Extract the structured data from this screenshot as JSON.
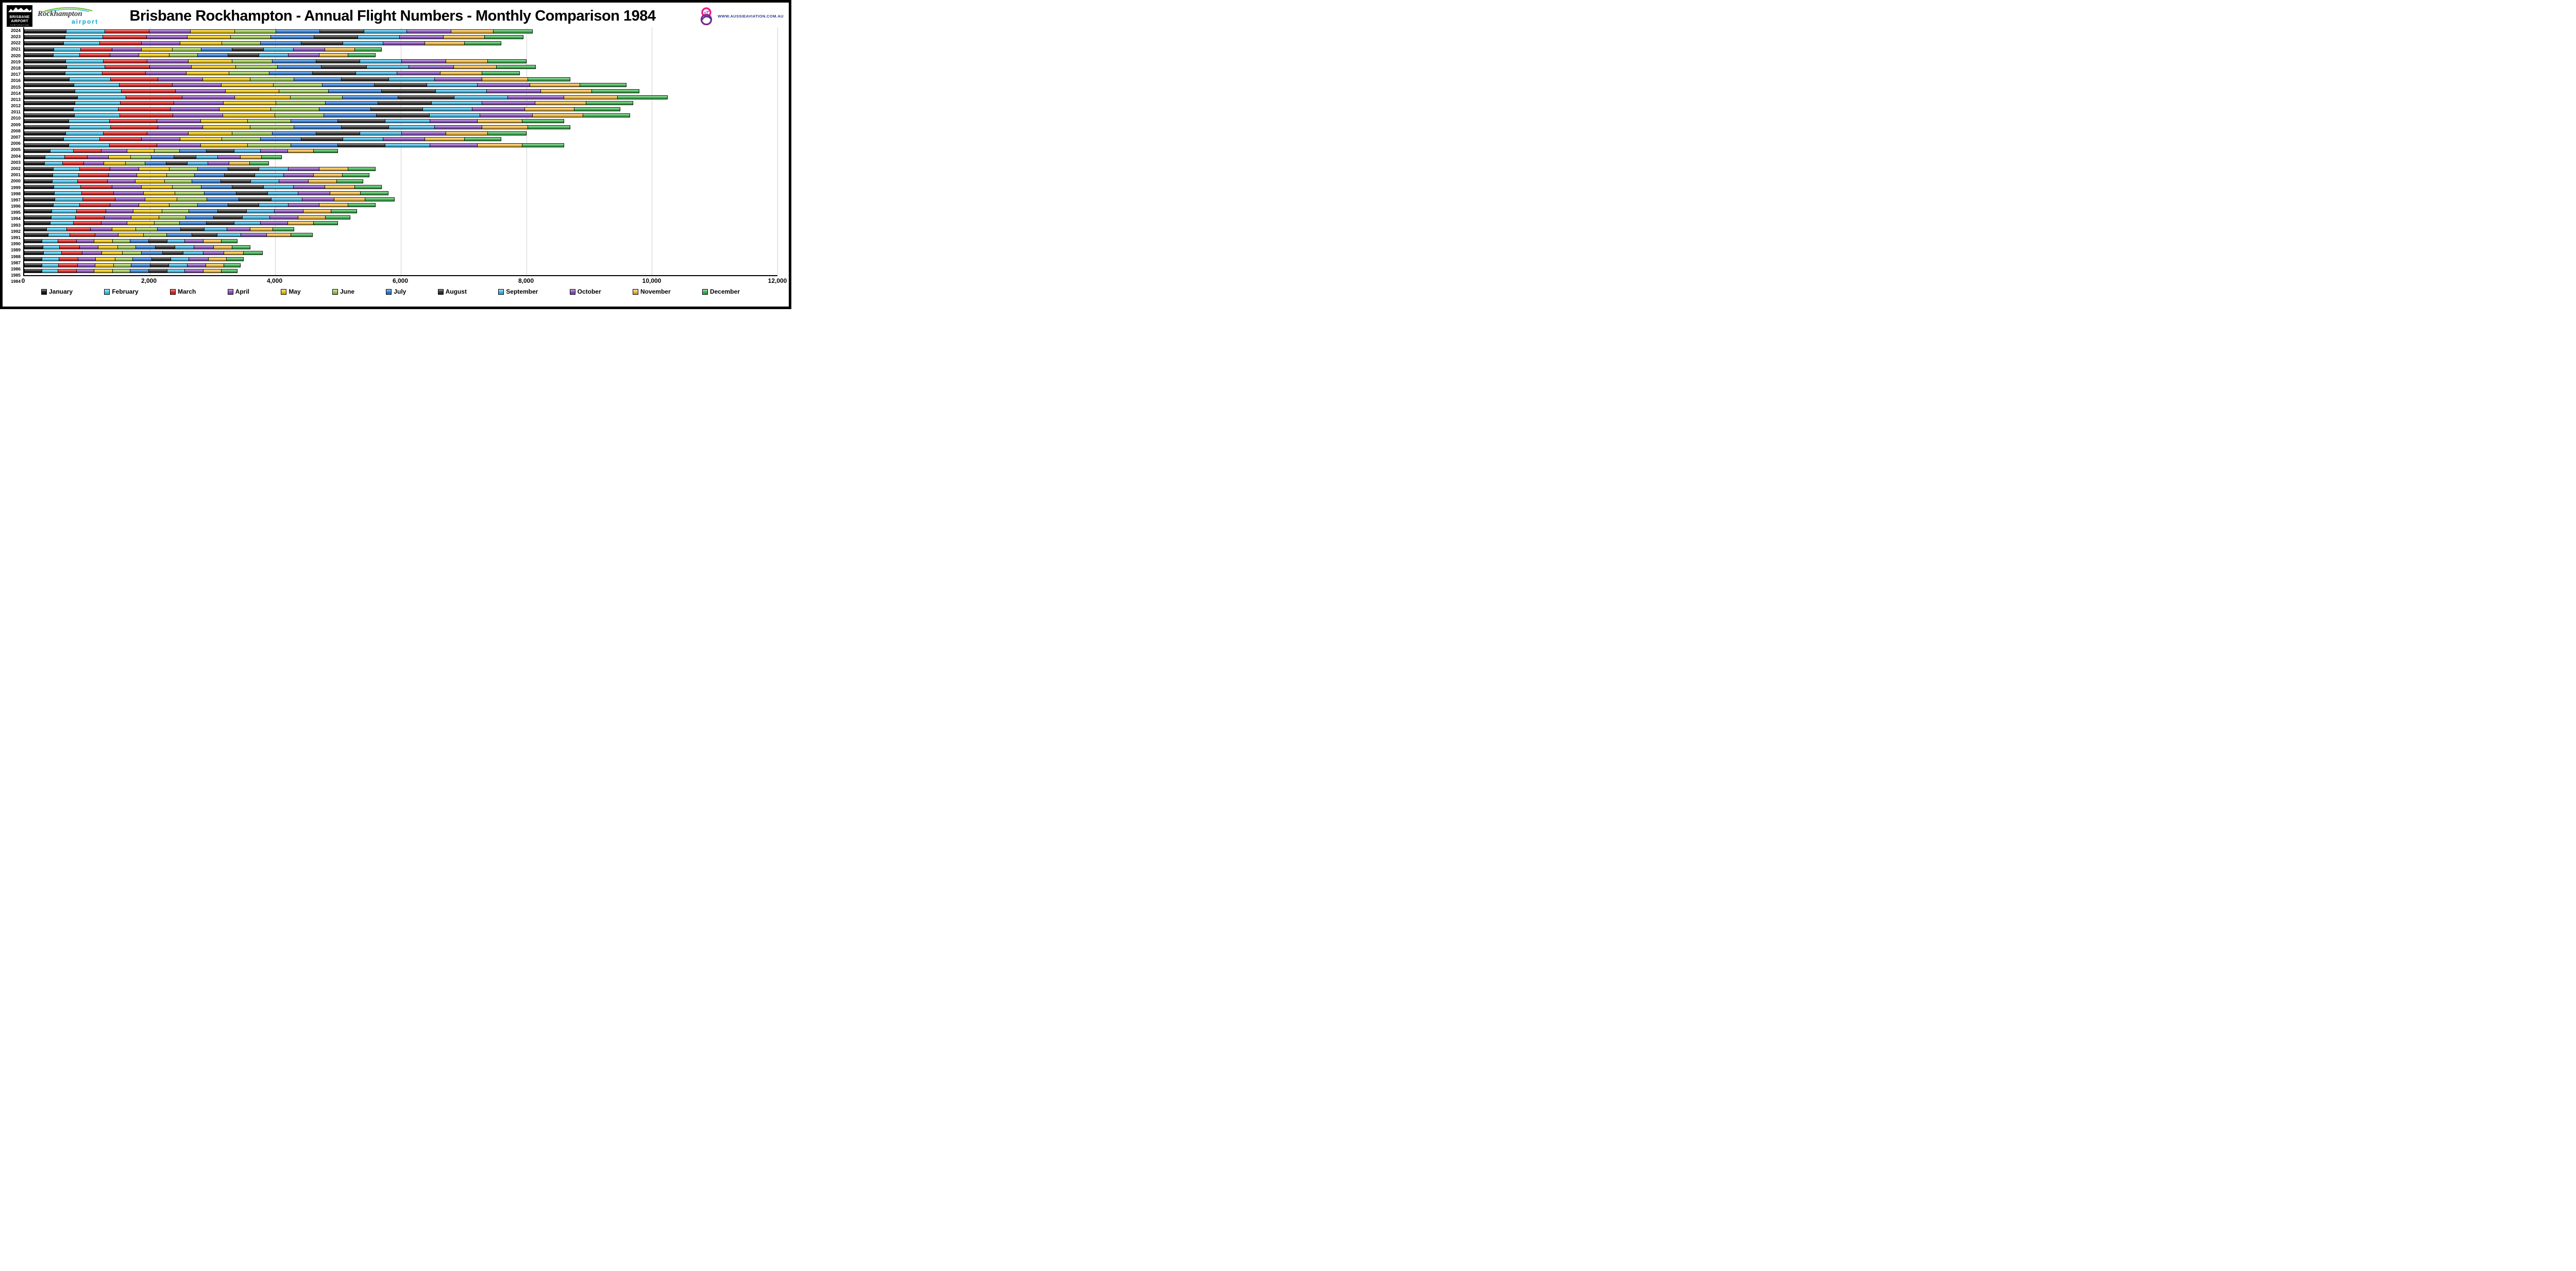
{
  "header": {
    "logo_brisbane": {
      "line1": "BRISBANE",
      "line2": "AIRPORT",
      "line3": "CORPORATION"
    },
    "logo_rockhampton": {
      "line1": "Rockhampton",
      "line2": "airport"
    },
    "logo_aussie": {
      "text": "WWW.AUSSIEAVIATION.COM.AU"
    }
  },
  "chart_data": {
    "type": "bar",
    "stacked": true,
    "orientation": "horizontal",
    "title": "Brisbane Rockhampton - Annual Flight Numbers - Monthly Comparison 1984",
    "xlabel": "",
    "ylabel": "Year",
    "xlim": [
      0,
      12000
    ],
    "xticks": [
      0,
      2000,
      4000,
      6000,
      8000,
      10000,
      12000
    ],
    "xtick_labels": [
      "0",
      "2,000",
      "4,000",
      "6,000",
      "8,000",
      "10,000",
      "12,000"
    ],
    "grid": "vertical",
    "legend_position": "bottom",
    "categories": [
      2024,
      2023,
      2022,
      2021,
      2020,
      2019,
      2018,
      2017,
      2016,
      2015,
      2014,
      2013,
      2012,
      2011,
      2010,
      2009,
      2008,
      2007,
      2006,
      2005,
      2004,
      2003,
      2002,
      2001,
      2000,
      1999,
      1998,
      1997,
      1996,
      1995,
      1994,
      1993,
      1992,
      1991,
      1990,
      1989,
      1988,
      1987,
      1986,
      1985,
      1984
    ],
    "series": [
      {
        "name": "January",
        "color": "#151515",
        "values": [
          675,
          660,
          635,
          475,
          465,
          665,
          680,
          660,
          725,
          800,
          815,
          855,
          810,
          790,
          805,
          715,
          725,
          665,
          635,
          715,
          415,
          340,
          325,
          465,
          460,
          450,
          475,
          485,
          490,
          465,
          440,
          435,
          415,
          360,
          385,
          285,
          300,
          315,
          290,
          290,
          285
        ]
      },
      {
        "name": "February",
        "color": "#45c8f1",
        "values": [
          610,
          595,
          570,
          430,
          420,
          600,
          610,
          590,
          650,
          720,
          735,
          770,
          725,
          715,
          725,
          645,
          650,
          600,
          570,
          645,
          375,
          310,
          290,
          420,
          410,
          405,
          430,
          435,
          445,
          420,
          400,
          390,
          375,
          320,
          345,
          255,
          270,
          285,
          265,
          260,
          255
        ]
      },
      {
        "name": "March",
        "color": "#e32020",
        "values": [
          710,
          695,
          665,
          500,
          490,
          700,
          715,
          690,
          760,
          840,
          860,
          895,
          850,
          830,
          845,
          755,
          760,
          700,
          665,
          755,
          440,
          360,
          340,
          490,
          480,
          475,
          500,
          510,
          515,
          490,
          465,
          455,
          440,
          375,
          400,
          300,
          315,
          330,
          305,
          300,
          300
        ]
      },
      {
        "name": "April",
        "color": "#8f4fbf",
        "values": [
          660,
          650,
          620,
          465,
          455,
          655,
          665,
          645,
          710,
          785,
          800,
          835,
          790,
          775,
          790,
          700,
          710,
          655,
          620,
          700,
          410,
          335,
          320,
          455,
          450,
          440,
          465,
          475,
          480,
          455,
          435,
          425,
          410,
          350,
          375,
          280,
          295,
          310,
          285,
          280,
          280
        ]
      },
      {
        "name": "May",
        "color": "#f0c400",
        "values": [
          700,
          690,
          660,
          495,
          485,
          695,
          705,
          685,
          755,
          830,
          850,
          890,
          840,
          825,
          835,
          745,
          755,
          695,
          660,
          745,
          435,
          355,
          340,
          485,
          475,
          470,
          495,
          500,
          510,
          485,
          460,
          450,
          435,
          375,
          400,
          295,
          310,
          330,
          305,
          300,
          295
        ]
      },
      {
        "name": "June",
        "color": "#9ccb4e",
        "values": [
          655,
          645,
          615,
          460,
          455,
          645,
          660,
          640,
          705,
          775,
          790,
          830,
          785,
          770,
          780,
          695,
          705,
          645,
          615,
          695,
          405,
          330,
          315,
          455,
          445,
          435,
          460,
          470,
          475,
          455,
          430,
          420,
          405,
          345,
          370,
          275,
          290,
          305,
          280,
          280,
          275
        ]
      },
      {
        "name": "July",
        "color": "#2f7ed8",
        "values": [
          700,
          690,
          655,
          495,
          485,
          695,
          705,
          685,
          750,
          830,
          850,
          885,
          840,
          820,
          835,
          745,
          750,
          695,
          655,
          745,
          430,
          355,
          335,
          485,
          475,
          465,
          495,
          505,
          510,
          485,
          455,
          450,
          430,
          370,
          400,
          295,
          310,
          330,
          305,
          300,
          295
        ]
      },
      {
        "name": "August",
        "color": "#2b2b2b",
        "values": [
          710,
          695,
          665,
          500,
          490,
          700,
          715,
          690,
          760,
          840,
          860,
          895,
          850,
          830,
          845,
          750,
          760,
          700,
          665,
          750,
          440,
          360,
          340,
          490,
          480,
          475,
          500,
          505,
          515,
          490,
          465,
          455,
          440,
          375,
          400,
          295,
          315,
          335,
          305,
          300,
          295
        ]
      },
      {
        "name": "September",
        "color": "#3fb9e9",
        "values": [
          675,
          665,
          635,
          475,
          465,
          665,
          680,
          660,
          725,
          800,
          815,
          855,
          810,
          790,
          805,
          715,
          725,
          665,
          635,
          715,
          415,
          340,
          325,
          465,
          460,
          450,
          475,
          485,
          490,
          465,
          440,
          435,
          415,
          360,
          385,
          285,
          300,
          315,
          290,
          290,
          285
        ]
      },
      {
        "name": "October",
        "color": "#8a52c0",
        "values": [
          710,
          695,
          665,
          500,
          490,
          700,
          710,
          690,
          760,
          840,
          855,
          895,
          845,
          830,
          840,
          755,
          760,
          700,
          665,
          755,
          435,
          360,
          340,
          490,
          480,
          470,
          500,
          505,
          515,
          490,
          460,
          455,
          435,
          375,
          405,
          295,
          315,
          330,
          305,
          300,
          295
        ]
      },
      {
        "name": "November",
        "color": "#f2b83a",
        "values": [
          675,
          660,
          630,
          475,
          465,
          665,
          680,
          660,
          725,
          800,
          815,
          855,
          810,
          790,
          805,
          715,
          725,
          665,
          630,
          715,
          415,
          340,
          325,
          465,
          460,
          450,
          475,
          485,
          490,
          465,
          440,
          435,
          415,
          360,
          385,
          285,
          300,
          315,
          290,
          285,
          285
        ]
      },
      {
        "name": "December",
        "color": "#3bb54c",
        "values": [
          620,
          610,
          585,
          430,
          435,
          615,
          625,
          605,
          675,
          740,
          755,
          790,
          745,
          735,
          740,
          665,
          675,
          615,
          585,
          665,
          385,
          315,
          305,
          435,
          425,
          415,
          430,
          440,
          465,
          435,
          410,
          395,
          385,
          335,
          350,
          255,
          280,
          300,
          275,
          265,
          255
        ]
      }
    ]
  }
}
